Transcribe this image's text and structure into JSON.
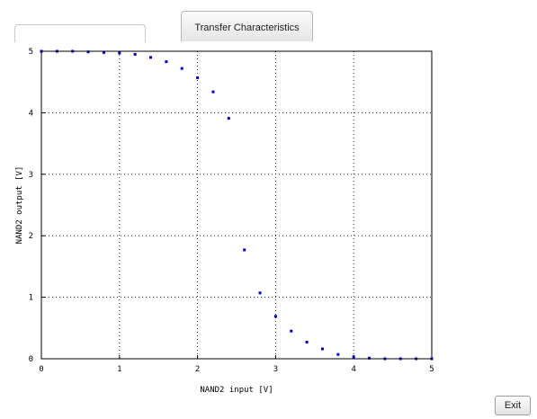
{
  "tabs": {
    "main_label": "Transfer Characteristics"
  },
  "buttons": {
    "exit_label": "Exit"
  },
  "colors": {
    "marker": "#0000cc",
    "grid": "#000000",
    "background": "#ffffff"
  },
  "chart_data": {
    "type": "scatter",
    "xlabel": "NAND2 input [V]",
    "ylabel": "NAND2 output [V]",
    "xlim": [
      0,
      5
    ],
    "ylim": [
      0,
      5
    ],
    "xticks": [
      "0",
      "1",
      "2",
      "3",
      "4",
      "5"
    ],
    "yticks": [
      "0",
      "1",
      "2",
      "3",
      "4",
      "5"
    ],
    "grid": true,
    "x": [
      0,
      0.2,
      0.4,
      0.6,
      0.8,
      1.0,
      1.2,
      1.4,
      1.6,
      1.8,
      2.0,
      2.2,
      2.4,
      2.6,
      2.8,
      3.0,
      3.2,
      3.4,
      3.6,
      3.8,
      4.0,
      4.2,
      4.4,
      4.6,
      4.8,
      5.0
    ],
    "y": [
      5.0,
      5.0,
      5.0,
      4.99,
      4.98,
      4.97,
      4.95,
      4.9,
      4.83,
      4.72,
      4.57,
      4.34,
      3.91,
      1.77,
      1.07,
      0.69,
      0.45,
      0.27,
      0.16,
      0.07,
      0.03,
      0.01,
      0.0,
      0.0,
      0.0,
      0.0
    ]
  }
}
